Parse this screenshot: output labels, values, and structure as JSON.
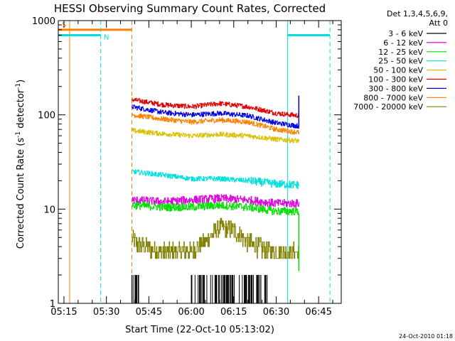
{
  "colors": {
    "background": "#ffffff",
    "axes": "#000000",
    "flag_s": "#ff8000",
    "flag_n": "#00e0e0"
  },
  "chart_data": {
    "type": "line",
    "title": "HESSI Observing Summary Count Rates, Corrected",
    "xlabel": "Start Time (22-Oct-10 05:13:02)",
    "ylabel": "Corrected Count Rate (s⁻¹ detector⁻¹)",
    "ylabel_parts": {
      "main": "Corrected Count Rate (s",
      "sup1": "-1",
      "mid": " detector",
      "sup2": "-1",
      "end": ")"
    },
    "yscale": "log",
    "ylim": [
      1,
      1000
    ],
    "xlim": [
      "05:13",
      "06:53"
    ],
    "x_ticks": [
      "05:15",
      "05:30",
      "05:45",
      "06:00",
      "06:15",
      "06:30",
      "06:45"
    ],
    "y_ticks": [
      "1",
      "10",
      "100",
      "1000"
    ],
    "legend_position": "top-right, outside plot",
    "legend_header": [
      "Det 1,3,4,5,6,9,",
      "Att 0"
    ],
    "timestamp": "24-Oct-2010 01:18",
    "data_window": [
      "05:39",
      "06:38"
    ],
    "flags": [
      {
        "label": "S",
        "color": "#ff8000",
        "value": 800,
        "intervals": [
          [
            "05:13",
            "05:39"
          ]
        ],
        "solid_lines": [
          "05:17"
        ],
        "dashed_lines": [
          "05:39"
        ]
      },
      {
        "label": "N",
        "color": "#00e0e0",
        "value": 700,
        "intervals": [
          [
            "05:13",
            "05:28"
          ],
          [
            "06:34",
            "06:49"
          ]
        ],
        "solid_lines": [
          "05:13",
          "06:34"
        ],
        "dashed_lines": [
          "05:28",
          "06:49"
        ]
      }
    ],
    "series": [
      {
        "name": "3 - 6 keV",
        "color": "#000000",
        "time": [
          "05:39",
          "05:41",
          "06:00",
          "06:01",
          "06:02",
          "06:20",
          "06:21",
          "06:25",
          "06:35",
          "06:38"
        ],
        "values": [
          2.0,
          1.0,
          1.0,
          2.0,
          1.0,
          2.0,
          1.0,
          2.0,
          1.0,
          1.0
        ]
      },
      {
        "name": "6 - 12 keV",
        "color": "#e000e0",
        "time": [
          "05:39",
          "05:50",
          "06:00",
          "06:10",
          "06:20",
          "06:30",
          "06:38"
        ],
        "values": [
          12.5,
          12.0,
          12.5,
          13.0,
          12.5,
          11.5,
          11.5
        ]
      },
      {
        "name": "12 - 25 keV",
        "color": "#00e000",
        "time": [
          "05:39",
          "05:50",
          "06:00",
          "06:10",
          "06:20",
          "06:30",
          "06:38"
        ],
        "values": [
          11.0,
          10.5,
          10.5,
          11.0,
          10.5,
          9.5,
          9.5
        ]
      },
      {
        "name": "25 - 50 keV",
        "color": "#00e0e0",
        "time": [
          "05:39",
          "05:50",
          "06:00",
          "06:10",
          "06:20",
          "06:30",
          "06:38"
        ],
        "values": [
          25,
          23,
          21,
          21,
          20,
          18.5,
          18
        ]
      },
      {
        "name": "50 - 100 keV",
        "color": "#d8c000",
        "time": [
          "05:39",
          "05:50",
          "06:00",
          "06:10",
          "06:20",
          "06:30",
          "06:38"
        ],
        "values": [
          68,
          63,
          60,
          62,
          60,
          55,
          53
        ]
      },
      {
        "name": "100 - 300 keV",
        "color": "#e00000",
        "time": [
          "05:39",
          "05:50",
          "06:00",
          "06:10",
          "06:20",
          "06:30",
          "06:38"
        ],
        "values": [
          145,
          128,
          122,
          132,
          122,
          104,
          98
        ]
      },
      {
        "name": "300 - 800 keV",
        "color": "#0000e0",
        "time": [
          "05:39",
          "05:50",
          "06:00",
          "06:10",
          "06:20",
          "06:30",
          "06:38"
        ],
        "values": [
          122,
          106,
          100,
          104,
          98,
          82,
          76
        ]
      },
      {
        "name": "800 - 7000 keV",
        "color": "#ff8000",
        "time": [
          "05:39",
          "05:50",
          "06:00",
          "06:10",
          "06:20",
          "06:30",
          "06:38"
        ],
        "values": [
          100,
          90,
          84,
          88,
          84,
          70,
          65
        ]
      },
      {
        "name": "7000 - 20000 keV",
        "color": "#808000",
        "time": [
          "05:39",
          "05:41",
          "05:50",
          "06:00",
          "06:05",
          "06:10",
          "06:15",
          "06:20",
          "06:25",
          "06:30",
          "06:38"
        ],
        "values": [
          4.8,
          4.2,
          3.5,
          3.6,
          4.5,
          6.5,
          6.0,
          4.5,
          3.8,
          3.5,
          3.5
        ]
      }
    ]
  }
}
